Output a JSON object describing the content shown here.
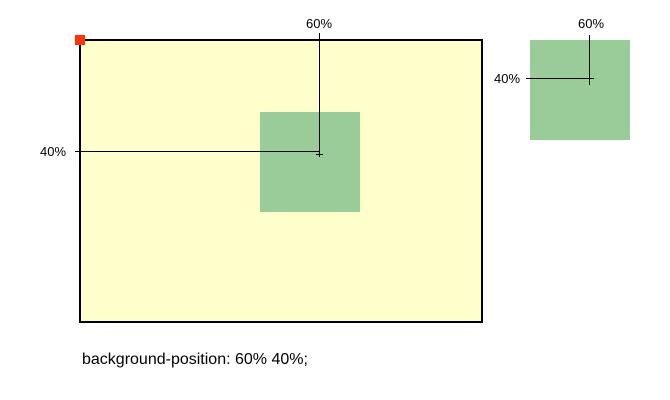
{
  "diagram": {
    "x_percent_label": "60%",
    "y_percent_label": "40%",
    "caption": "background-position: 60% 40%;",
    "colors": {
      "container_fill": "#ffffcc",
      "image_fill": "#99cc99",
      "origin_marker": "#ff3300",
      "lines": "#000000"
    }
  }
}
